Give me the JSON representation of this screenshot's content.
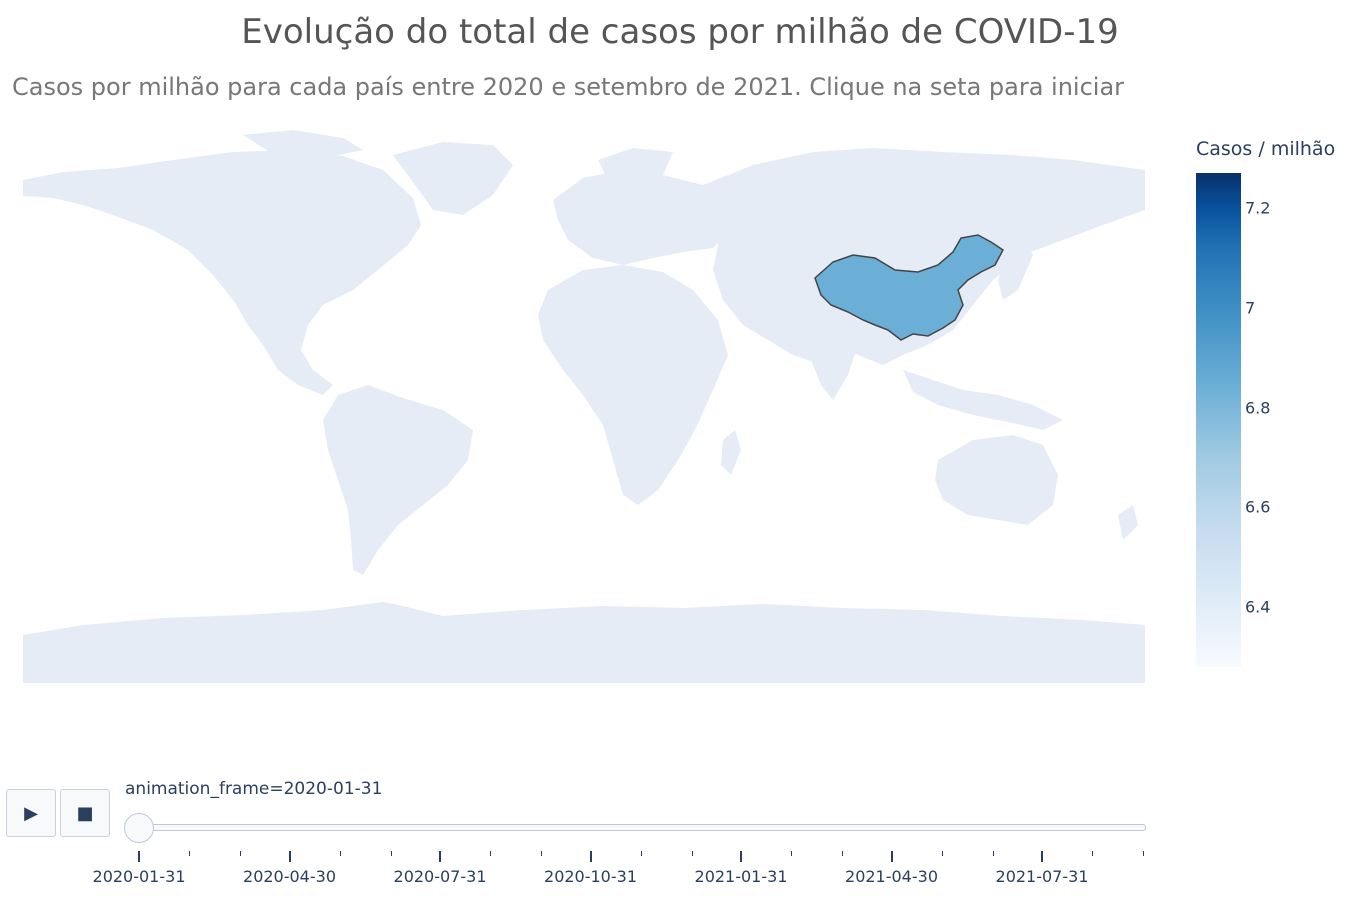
{
  "chart_data": {
    "type": "choropleth",
    "title": "Evolução do total de casos por milhão de COVID-19",
    "subtitle": "Casos por milhão para cada país entre 2020 e setembro de 2021. Clique na seta para iniciar",
    "colorbar": {
      "title": "Casos / milhão",
      "range": [
        6.28,
        7.27
      ],
      "ticks": [
        6.4,
        6.6,
        6.8,
        7,
        7.2
      ],
      "tick_labels": [
        "6.4",
        "6.6",
        "6.8",
        "7",
        "7.2"
      ],
      "colorscale": "Blues"
    },
    "highlighted_countries": [
      {
        "country": "China",
        "value": 6.77,
        "color": "#6baed6"
      }
    ],
    "land_color": "#e5ecf6"
  },
  "animation": {
    "play_icon": "play-icon",
    "stop_icon": "stop-icon",
    "frame_label": "animation_frame=2020-01-31",
    "current_frame": "2020-01-31",
    "slider_ticks": [
      "2020-01-31",
      "2020-04-30",
      "2020-07-31",
      "2020-10-31",
      "2021-01-31",
      "2021-04-30",
      "2021-07-31"
    ]
  }
}
